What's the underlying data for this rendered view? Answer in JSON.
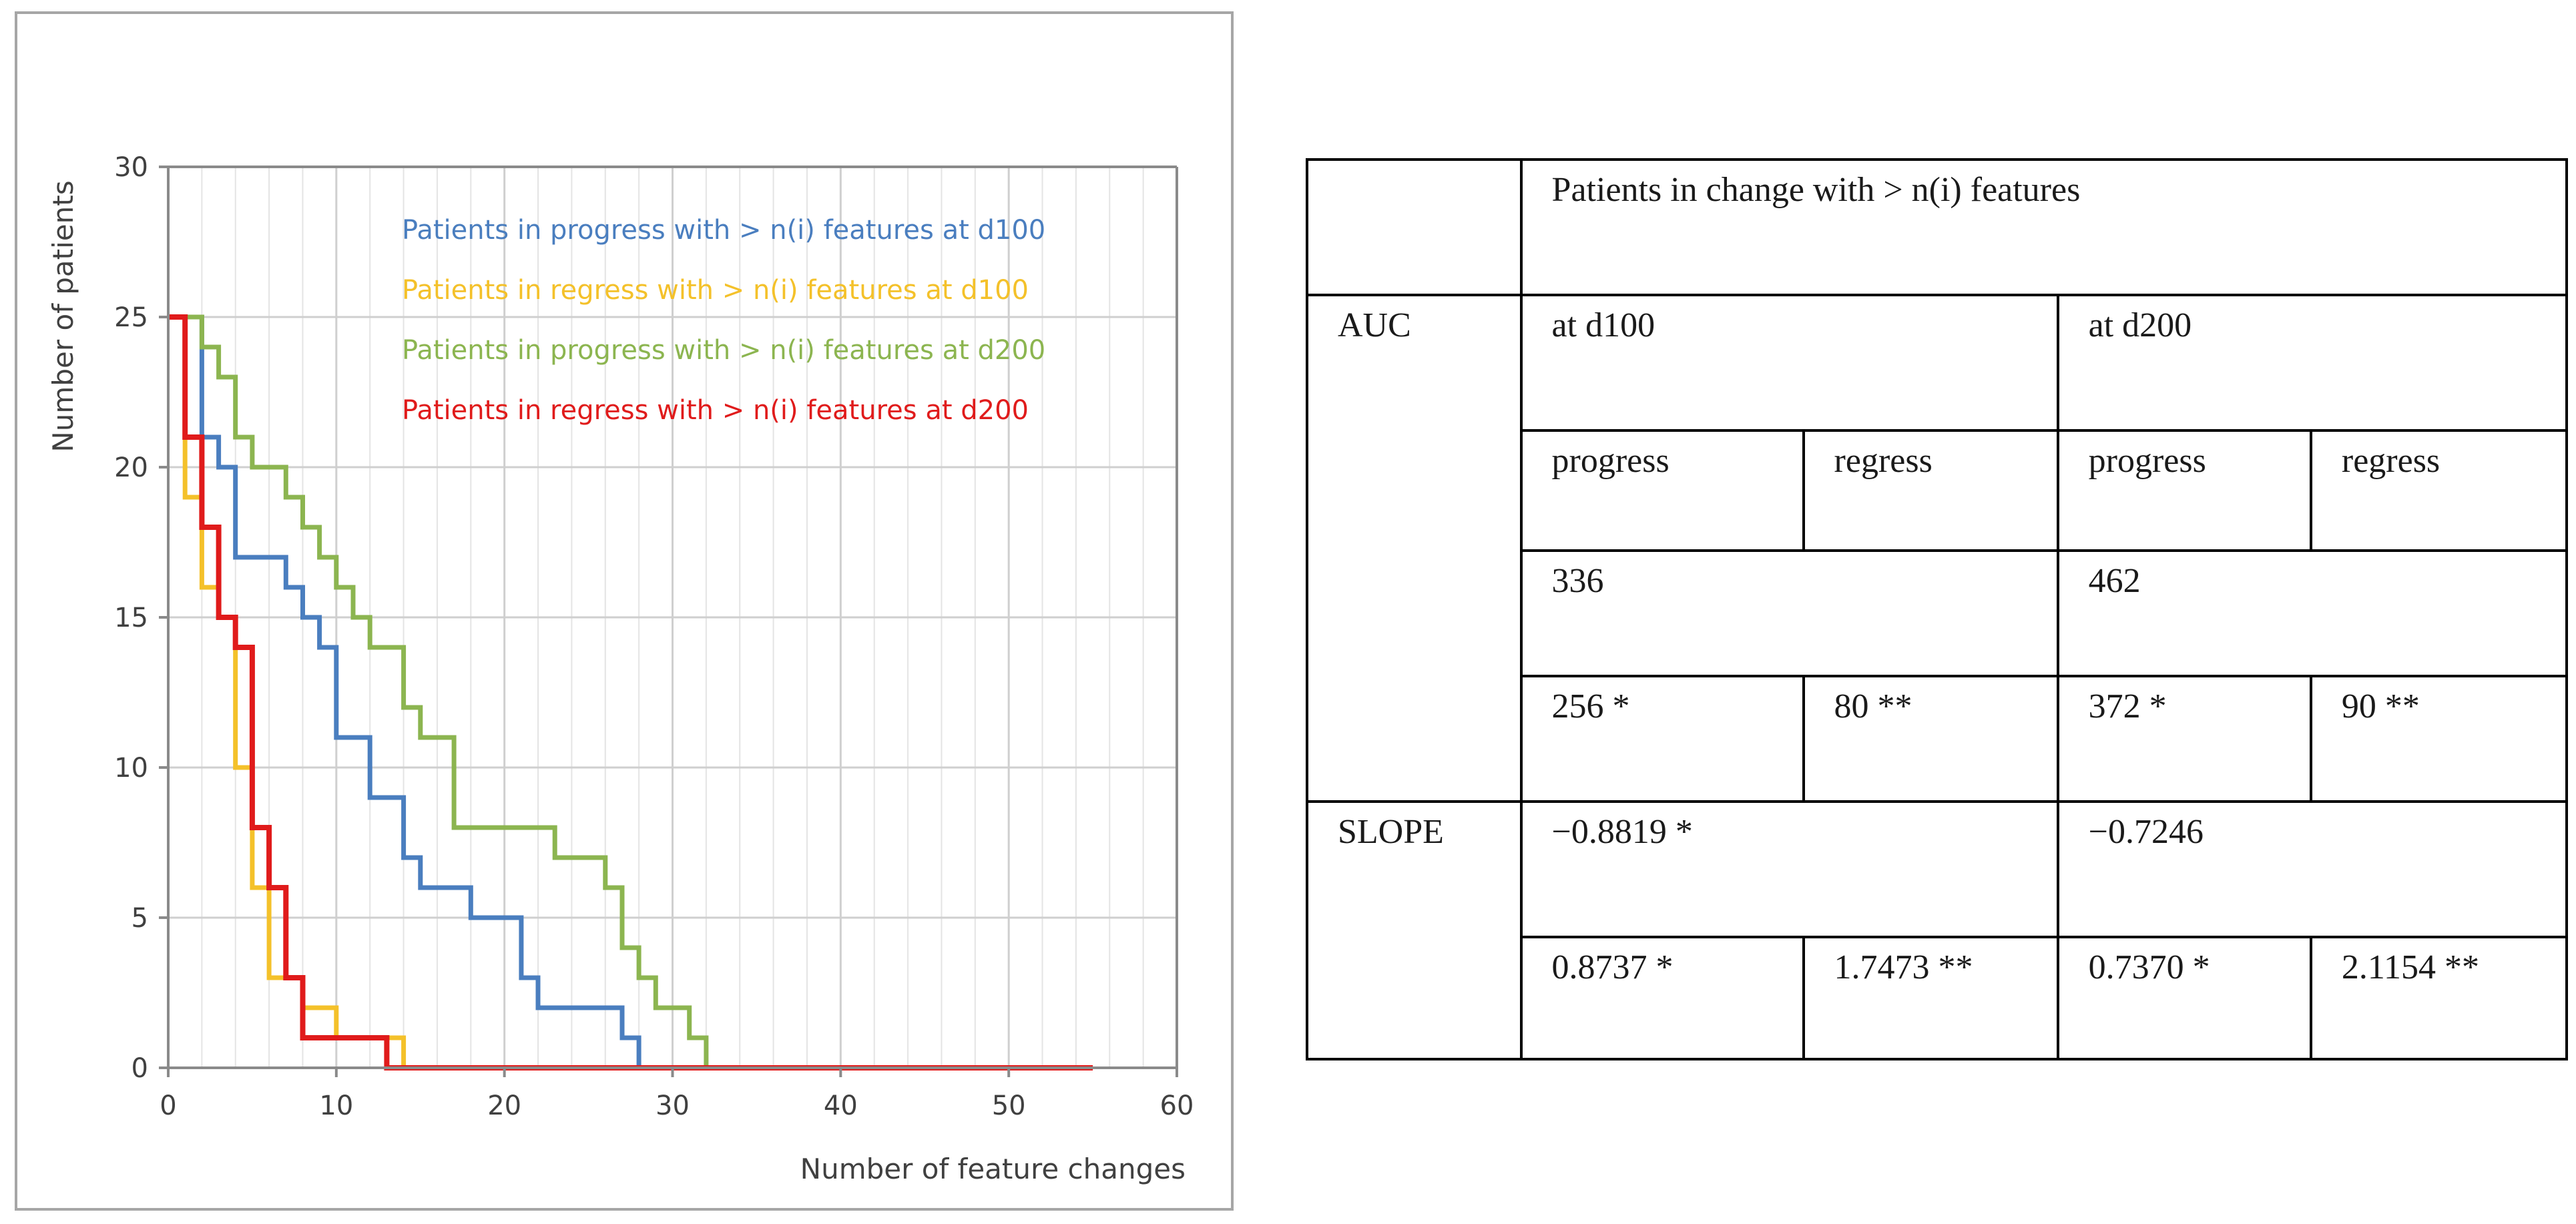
{
  "chart_data": {
    "type": "line",
    "step": true,
    "title": "",
    "xlabel": "Number of feature changes",
    "ylabel": "Number  of patients",
    "xlim": [
      0,
      60
    ],
    "ylim": [
      0,
      30
    ],
    "xticks": [
      0,
      10,
      20,
      30,
      40,
      50,
      60
    ],
    "yticks": [
      0,
      5,
      10,
      15,
      20,
      25,
      30
    ],
    "grid": true,
    "legend_position": "top-right",
    "series": [
      {
        "name": "Patients in progress with > n(i) features at d100",
        "color": "#4a7ebf",
        "x": [
          0,
          2,
          2,
          3,
          3,
          4,
          4,
          7,
          7,
          8,
          8,
          9,
          9,
          10,
          10,
          12,
          12,
          14,
          14,
          15,
          15,
          18,
          18,
          21,
          21,
          22,
          22,
          27,
          27,
          28,
          28
        ],
        "y": [
          25,
          25,
          21,
          21,
          20,
          20,
          17,
          17,
          16,
          16,
          15,
          15,
          14,
          14,
          11,
          11,
          9,
          9,
          7,
          7,
          6,
          6,
          5,
          5,
          3,
          3,
          2,
          2,
          1,
          1,
          0
        ]
      },
      {
        "name": "Patients in regress with > n(i) features at d100",
        "color": "#f4c12a",
        "x": [
          0,
          1,
          1,
          2,
          2,
          3,
          3,
          4,
          4,
          5,
          5,
          6,
          6,
          8,
          8,
          10,
          10,
          14,
          14
        ],
        "y": [
          25,
          25,
          19,
          19,
          16,
          16,
          15,
          15,
          10,
          10,
          6,
          6,
          3,
          3,
          2,
          2,
          1,
          1,
          0
        ]
      },
      {
        "name": "Patients in progress with > n(i) features at d200",
        "color": "#8cb550",
        "x": [
          0,
          2,
          2,
          3,
          3,
          4,
          4,
          5,
          5,
          7,
          7,
          8,
          8,
          9,
          9,
          10,
          10,
          11,
          11,
          12,
          12,
          14,
          14,
          15,
          15,
          17,
          17,
          23,
          23,
          26,
          26,
          27,
          27,
          28,
          28,
          29,
          29,
          31,
          31,
          32,
          32,
          33,
          33
        ],
        "y": [
          25,
          25,
          24,
          24,
          23,
          23,
          21,
          21,
          20,
          20,
          19,
          19,
          18,
          18,
          17,
          17,
          16,
          16,
          15,
          15,
          14,
          14,
          12,
          12,
          11,
          11,
          8,
          8,
          7,
          7,
          6,
          6,
          4,
          4,
          3,
          3,
          2,
          2,
          1,
          1,
          0,
          0,
          0
        ]
      },
      {
        "name": "Patients in regress with > n(i) features at d200",
        "color": "#e01b1b",
        "x": [
          0,
          1,
          1,
          2,
          2,
          3,
          3,
          4,
          4,
          5,
          5,
          6,
          6,
          7,
          7,
          8,
          8,
          13,
          13,
          55
        ],
        "y": [
          25,
          25,
          21,
          21,
          18,
          18,
          15,
          15,
          14,
          14,
          8,
          8,
          6,
          6,
          3,
          3,
          1,
          1,
          0,
          0
        ]
      }
    ]
  },
  "table": {
    "header": "Patients in change with > n(i) features",
    "auc_label": "AUC",
    "slope_label": "SLOPE",
    "d100": "at d100",
    "d200": "at d200",
    "d100_progress": "progress",
    "d100_regress": "regress",
    "d200_progress": "progress",
    "d200_regress": "regress",
    "auc_d100_total": "336",
    "auc_d200_total": "462",
    "auc_d100_progress": "256 *",
    "auc_d100_regress": "80 **",
    "auc_d200_progress": "372 *",
    "auc_d200_regress": "90 **",
    "slope_d100_total": "−0.8819 *",
    "slope_d200_total": "−0.7246",
    "slope_d100_progress": "0.8737 *",
    "slope_d100_regress": "1.7473 **",
    "slope_d200_progress": "0.7370 *",
    "slope_d200_regress": "2.1154 **"
  }
}
